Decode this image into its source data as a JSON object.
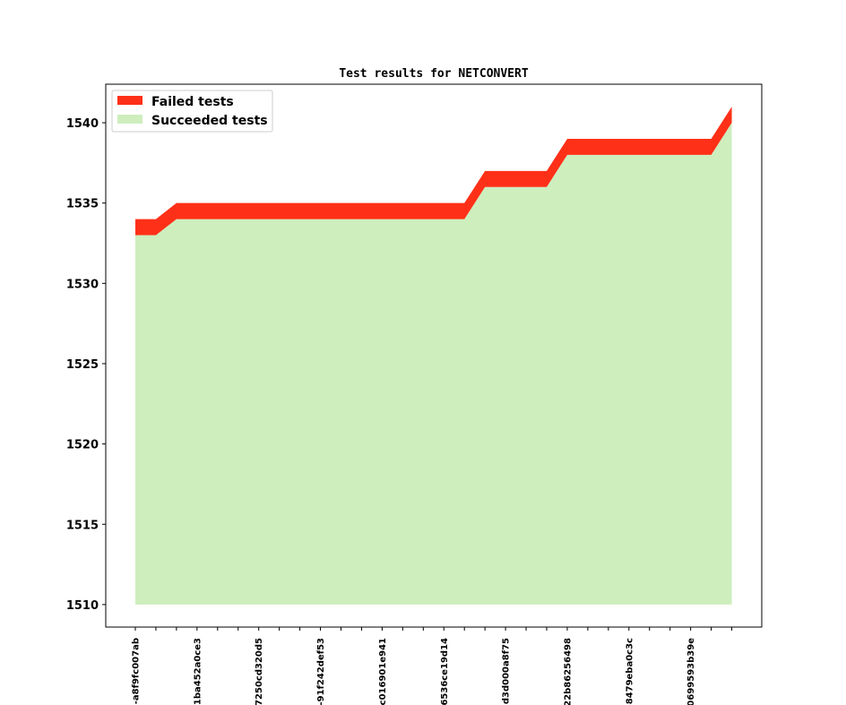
{
  "chart_data": {
    "type": "area",
    "title": "Test results for NETCONVERT",
    "xlabel": "",
    "ylabel": "",
    "ylim": [
      1508.6,
      1542.4
    ],
    "yticks": [
      1510,
      1515,
      1520,
      1525,
      1530,
      1535,
      1540
    ],
    "grid": false,
    "legend_position": "top-left",
    "colors": {
      "failed": "#ff3018",
      "succeeded": "#ceeebe"
    },
    "x_tick_labels": [
      "-a8f9fc007ab",
      "-1ba452a0ce3",
      "7250cd320d5",
      "-91f242def53",
      "c016901e941",
      "6536ce19d14",
      "d3d000a8f75",
      "22b86256498",
      "-8479eba0c3c",
      "0699593b39e"
    ],
    "x_tick_label_positions": [
      0,
      3,
      6,
      9,
      12,
      15,
      18,
      21,
      24,
      27
    ],
    "series": [
      {
        "name": "Failed tests",
        "values": [
          1534,
          1534,
          1535,
          1535,
          1535,
          1535,
          1535,
          1535,
          1535,
          1535,
          1535,
          1535,
          1535,
          1535,
          1535,
          1535,
          1535,
          1537,
          1537,
          1537,
          1537,
          1539,
          1539,
          1539,
          1539,
          1539,
          1539,
          1539,
          1539,
          1541
        ]
      },
      {
        "name": "Succeeded tests",
        "values": [
          1533,
          1533,
          1534,
          1534,
          1534,
          1534,
          1534,
          1534,
          1534,
          1534,
          1534,
          1534,
          1534,
          1534,
          1534,
          1534,
          1534,
          1536,
          1536,
          1536,
          1536,
          1538,
          1538,
          1538,
          1538,
          1538,
          1538,
          1538,
          1538,
          1540
        ]
      }
    ],
    "baseline": 1510
  }
}
